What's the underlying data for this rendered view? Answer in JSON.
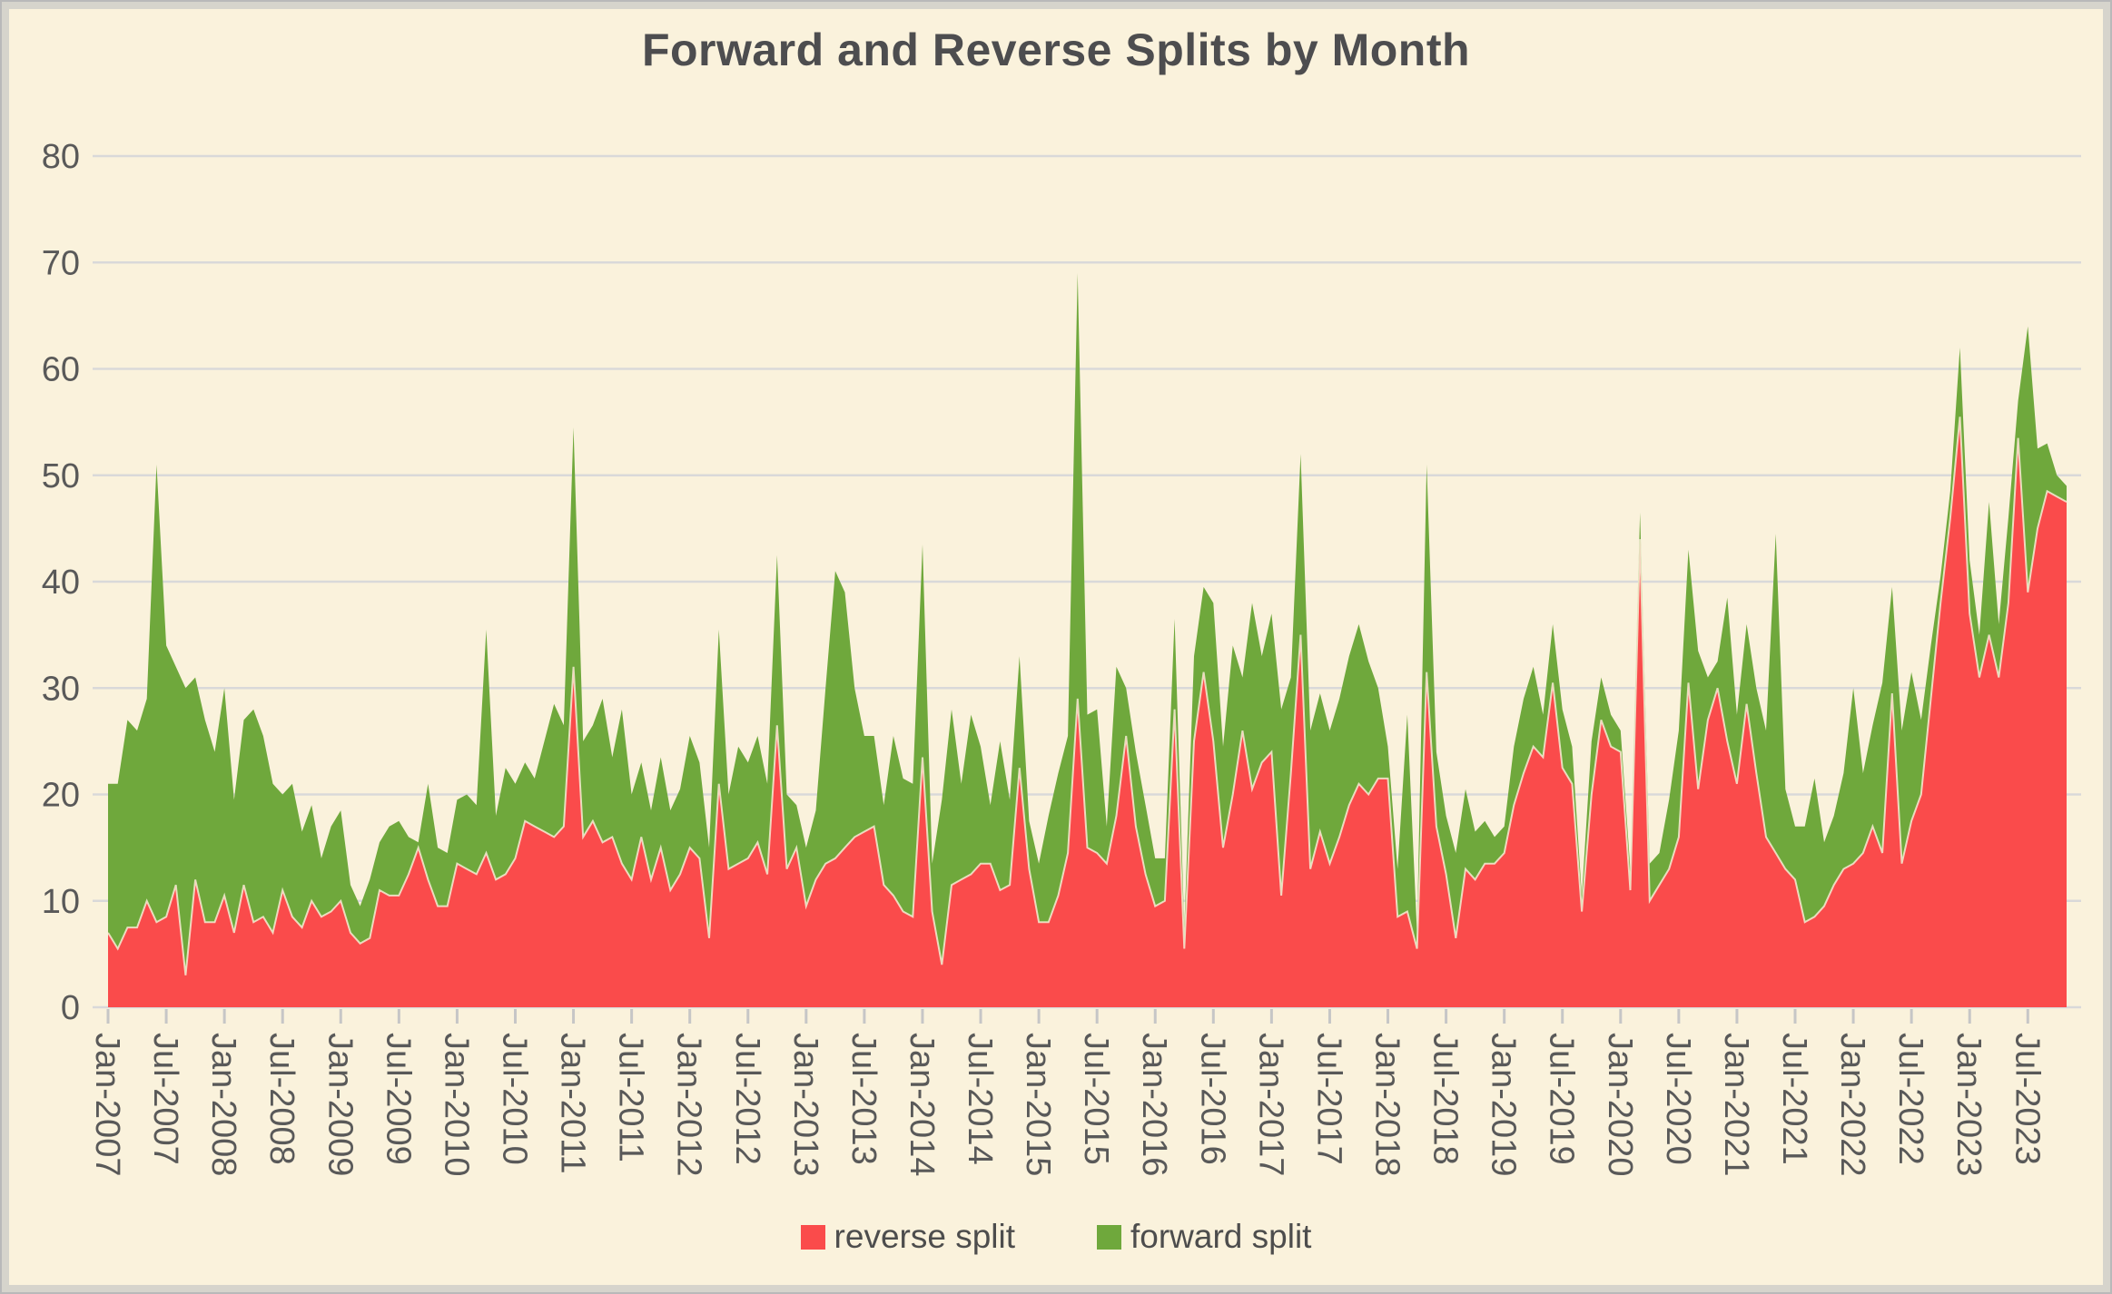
{
  "title": "Forward and Reverse Splits by Month",
  "colors": {
    "reverse": "#FA4B4B",
    "forward": "#6FA83C",
    "background": "#FAF2DC",
    "gridline": "#D9D9D9",
    "tick": "#C6C6C6",
    "axis_text": "#595959",
    "title_text": "#4D4D4F",
    "separator": "#FAF2DC"
  },
  "legend": {
    "items": [
      {
        "label": "reverse split",
        "series": "reverse"
      },
      {
        "label": "forward split",
        "series": "forward"
      }
    ]
  },
  "chart_data": {
    "type": "area",
    "stacked": true,
    "title": "Forward and Reverse Splits by Month",
    "xlabel": "",
    "ylabel": "",
    "x_start": "Jan-2007",
    "x_end": "Nov-2023",
    "frequency": "monthly",
    "n_points": 203,
    "ylim": [
      0,
      80
    ],
    "y_ticks": [
      0,
      10,
      20,
      30,
      40,
      50,
      60,
      70,
      80
    ],
    "grid": true,
    "legend_position": "bottom",
    "x_tick_every_months": 6,
    "x_tick_labels": [
      "Jan-2007",
      "Jul-2007",
      "Jan-2008",
      "Jul-2008",
      "Jan-2009",
      "Jul-2009",
      "Jan-2010",
      "Jul-2010",
      "Jan-2011",
      "Jul-2011",
      "Jan-2012",
      "Jul-2012",
      "Jan-2013",
      "Jul-2013",
      "Jan-2014",
      "Jul-2014",
      "Jan-2015",
      "Jul-2015",
      "Jan-2016",
      "Jul-2016",
      "Jan-2017",
      "Jul-2017",
      "Jan-2018",
      "Jul-2018",
      "Jan-2019",
      "Jul-2019",
      "Jan-2020",
      "Jul-2020",
      "Jan-2021",
      "Jul-2021",
      "Jan-2022",
      "Jul-2022",
      "Jan-2023",
      "Jul-2023"
    ],
    "series": [
      {
        "name": "reverse split",
        "color": "#FA4B4B",
        "values": [
          7,
          5.5,
          7.5,
          7.5,
          10,
          8,
          8.5,
          11.5,
          3,
          12,
          8,
          8,
          10.5,
          7,
          11.5,
          8,
          8.5,
          7,
          11,
          8.5,
          7.5,
          10,
          8.5,
          9,
          10,
          7,
          6,
          6.5,
          11,
          10.5,
          10.5,
          12.5,
          15,
          12,
          9.5,
          9.5,
          13.5,
          13,
          12.5,
          14.5,
          12,
          12.5,
          14,
          17.5,
          17,
          16.5,
          16,
          17,
          32,
          16,
          17.5,
          15.5,
          16,
          13.5,
          12,
          16,
          12,
          15,
          11,
          12.5,
          15,
          14,
          6.5,
          21,
          13,
          13.5,
          14,
          15.5,
          12.5,
          26.5,
          13,
          15,
          9.5,
          12,
          13.5,
          14,
          15,
          16,
          16.5,
          17,
          11.5,
          10.5,
          9,
          8.5,
          23.5,
          9,
          4,
          11.5,
          12,
          12.5,
          13.5,
          13.5,
          11,
          11.5,
          22.5,
          13,
          8,
          8,
          10.5,
          14.5,
          29,
          15,
          14.5,
          13.5,
          18,
          25.5,
          17,
          12.5,
          9.5,
          10,
          28,
          5.5,
          25,
          31.5,
          25,
          15,
          20,
          26,
          20.5,
          23,
          24,
          10.5,
          22,
          35,
          13,
          16.5,
          13.5,
          16,
          19,
          21,
          20,
          21.5,
          21.5,
          8.5,
          9,
          5.5,
          31.5,
          17,
          12.5,
          6.5,
          13,
          12,
          13.5,
          13.5,
          14.5,
          19,
          22,
          24.5,
          23.5,
          30.5,
          22.5,
          21,
          9,
          20,
          27,
          24.5,
          24,
          11,
          44,
          10,
          11.5,
          13,
          16,
          30.5,
          20.5,
          27,
          30,
          25,
          21,
          28.5,
          22,
          16,
          14.5,
          13,
          12,
          8,
          8.5,
          9.5,
          11.5,
          13,
          13.5,
          14.5,
          17,
          14.5,
          29.5,
          13.5,
          17.5,
          20,
          29,
          38,
          46,
          55.5,
          37,
          31,
          35,
          31,
          38,
          53.5,
          39,
          45,
          48.5,
          48,
          47.5
        ]
      },
      {
        "name": "forward split",
        "color": "#6FA83C",
        "values": [
          14,
          15.5,
          19.5,
          18.5,
          19,
          43,
          25.5,
          20.5,
          27,
          19,
          19,
          16,
          19.5,
          12.5,
          15.5,
          20,
          17,
          14,
          9,
          12.5,
          9,
          9,
          5.5,
          8,
          8.5,
          4.5,
          3.5,
          5.5,
          4.5,
          6.5,
          7,
          3.5,
          0.5,
          9,
          5.5,
          5,
          6,
          7,
          6.5,
          21,
          6,
          10,
          7,
          5.5,
          4.5,
          8.5,
          12.5,
          9.5,
          22.5,
          9,
          9,
          13.5,
          7.5,
          14.5,
          8,
          7,
          6.5,
          8.5,
          7.5,
          8,
          10.5,
          9,
          8.5,
          14.5,
          7,
          11,
          9,
          10,
          8.5,
          16,
          7,
          4,
          5.5,
          6.5,
          16.5,
          27,
          24,
          14,
          9,
          8.5,
          7.5,
          15,
          12.5,
          12.5,
          20,
          4.5,
          15.5,
          16.5,
          9,
          15,
          11,
          5.5,
          14,
          8,
          10.5,
          4.5,
          5.5,
          10,
          11.5,
          11,
          40,
          12.5,
          13.5,
          3.5,
          14,
          4.5,
          7,
          6.5,
          4.5,
          4,
          8.5,
          2,
          8,
          8,
          13,
          9.5,
          14,
          5,
          17.5,
          10,
          13,
          17.5,
          9,
          17,
          13,
          13,
          12.5,
          13,
          14,
          15,
          12.5,
          8.5,
          3,
          4.5,
          18.5,
          1.5,
          19.5,
          7,
          5.5,
          8,
          7.5,
          4.5,
          4,
          2.5,
          2.5,
          5.5,
          7,
          7.5,
          4,
          5.5,
          5.5,
          3.5,
          1.5,
          5,
          4,
          3,
          2,
          2,
          2.5,
          3.5,
          3,
          6.5,
          10,
          12.5,
          13,
          4,
          2.5,
          13.5,
          6.5,
          7.5,
          8,
          10,
          30,
          7.5,
          5,
          9,
          13,
          6,
          6.5,
          9,
          16.5,
          7.5,
          9.5,
          16,
          10,
          12.5,
          14,
          7,
          5,
          2.5,
          2.5,
          6.5,
          5,
          4,
          12.5,
          5,
          8,
          3.5,
          25,
          7.5,
          4.5,
          2,
          1.5
        ]
      }
    ]
  }
}
